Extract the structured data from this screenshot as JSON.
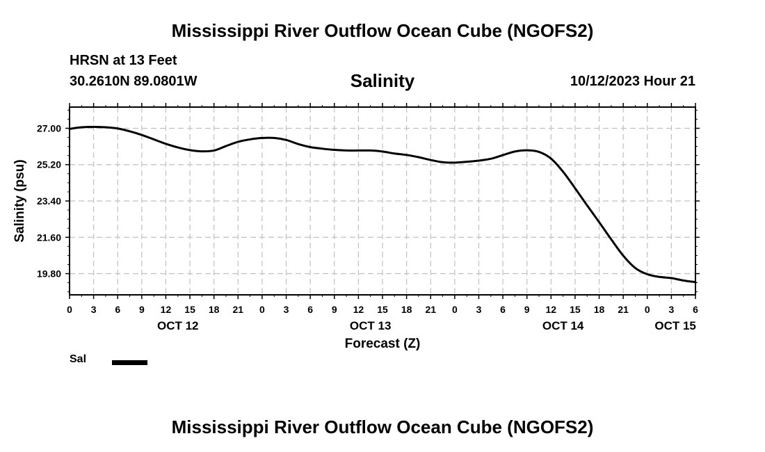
{
  "header": {
    "title": "Mississippi River Outflow Ocean Cube (NGOFS2)",
    "station": "HRSN at 13 Feet",
    "coordinates": "30.2610N  89.0801W",
    "chart_title": "Salinity",
    "timestamp": "10/12/2023 Hour 21"
  },
  "footer": {
    "title": "Mississippi River Outflow Ocean Cube (NGOFS2)"
  },
  "legend": {
    "label": "Sal",
    "color": "#000000"
  },
  "chart_data": {
    "type": "line",
    "title": "Salinity",
    "xlabel": "Forecast (Z)",
    "ylabel": "Salinity (psu)",
    "xlim": [
      0,
      78
    ],
    "ylim": [
      18.75,
      28.05
    ],
    "grid": true,
    "legend_position": "bottom-left",
    "x_ticks": [
      0,
      3,
      6,
      9,
      12,
      15,
      18,
      21,
      24,
      27,
      30,
      33,
      36,
      39,
      42,
      45,
      48,
      51,
      54,
      57,
      60,
      63,
      66,
      69,
      72,
      75,
      78
    ],
    "x_tick_labels": [
      "0",
      "3",
      "6",
      "9",
      "12",
      "15",
      "18",
      "21",
      "0",
      "3",
      "6",
      "9",
      "12",
      "15",
      "18",
      "21",
      "0",
      "3",
      "6",
      "9",
      "12",
      "15",
      "18",
      "21",
      "0",
      "3",
      "6"
    ],
    "x_date_labels": [
      {
        "x": 13.5,
        "label": "OCT 12"
      },
      {
        "x": 37.5,
        "label": "OCT 13"
      },
      {
        "x": 61.5,
        "label": "OCT 14"
      },
      {
        "x": 75.5,
        "label": "OCT 15"
      }
    ],
    "y_ticks": [
      19.8,
      21.6,
      23.4,
      25.2,
      27.0
    ],
    "y_tick_labels": [
      "19.80",
      "21.60",
      "23.40",
      "25.20",
      "27.00"
    ],
    "series": [
      {
        "name": "Sal",
        "color": "#000000",
        "x": [
          0,
          1.5,
          3,
          4.5,
          6,
          7.5,
          9,
          10.5,
          12,
          13.5,
          15,
          16.5,
          18,
          19.5,
          21,
          22.5,
          24,
          25.5,
          27,
          28.5,
          30,
          31.5,
          33,
          34.5,
          36,
          37.5,
          39,
          40.5,
          42,
          43.5,
          45,
          46.5,
          48,
          49.5,
          51,
          52.5,
          54,
          55.5,
          57,
          58.5,
          60,
          61.5,
          63,
          64.5,
          66,
          67.5,
          69,
          70.5,
          72,
          73.5,
          75,
          76.5,
          78
        ],
        "y": [
          26.97,
          27.05,
          27.07,
          27.05,
          26.99,
          26.85,
          26.67,
          26.45,
          26.23,
          26.05,
          25.92,
          25.86,
          25.9,
          26.12,
          26.33,
          26.45,
          26.52,
          26.52,
          26.42,
          26.22,
          26.07,
          25.99,
          25.93,
          25.9,
          25.9,
          25.9,
          25.85,
          25.75,
          25.68,
          25.57,
          25.43,
          25.32,
          25.3,
          25.34,
          25.4,
          25.49,
          25.67,
          25.85,
          25.91,
          25.83,
          25.5,
          24.85,
          24.03,
          23.18,
          22.35,
          21.5,
          20.69,
          20.08,
          19.77,
          19.64,
          19.58,
          19.46,
          19.38
        ]
      }
    ]
  }
}
